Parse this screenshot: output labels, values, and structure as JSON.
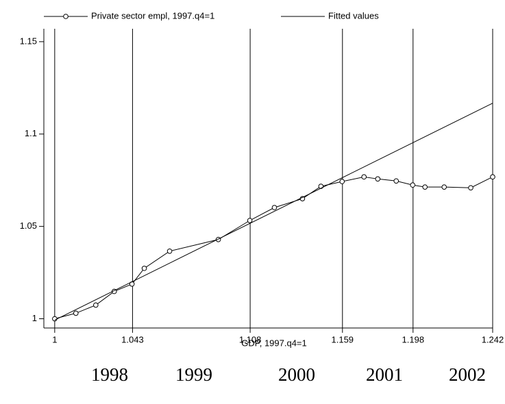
{
  "chart_data": {
    "type": "line",
    "xlabel": "GDP, 1997.q4=1",
    "xlim": [
      0.994,
      1.242
    ],
    "ylim": [
      0.995,
      1.157
    ],
    "xticks": [
      1,
      1.043,
      1.108,
      1.159,
      1.198,
      1.242
    ],
    "yticks": [
      1,
      1.05,
      1.1,
      1.15
    ],
    "xgrid": true,
    "legend": "top",
    "annotations": [
      "1998",
      "1999",
      "2000",
      "2001",
      "2002"
    ],
    "series": [
      {
        "name": "Private sector empl, 1997.q4=1",
        "color": "#000000",
        "marker": "circle",
        "x": [
          1,
          1.0117,
          1.0227,
          1.0329,
          1.0427,
          1.0495,
          1.0635,
          1.0904,
          1.1078,
          1.1214,
          1.1369,
          1.1471,
          1.1588,
          1.1709,
          1.1785,
          1.1887,
          1.1978,
          1.2046,
          1.2152,
          1.2299,
          1.242
        ],
        "values": [
          1,
          1.003,
          1.0074,
          1.0148,
          1.0188,
          1.0273,
          1.0366,
          1.0429,
          1.0532,
          1.0602,
          1.065,
          1.0717,
          1.0743,
          1.0768,
          1.0757,
          1.0746,
          1.0724,
          1.0713,
          1.0713,
          1.0709,
          1.0768
        ]
      },
      {
        "name": "Fitted values",
        "color": "#000000",
        "marker": "none",
        "x": [
          1,
          1.242
        ],
        "values": [
          0.9993,
          1.1167
        ]
      }
    ]
  }
}
